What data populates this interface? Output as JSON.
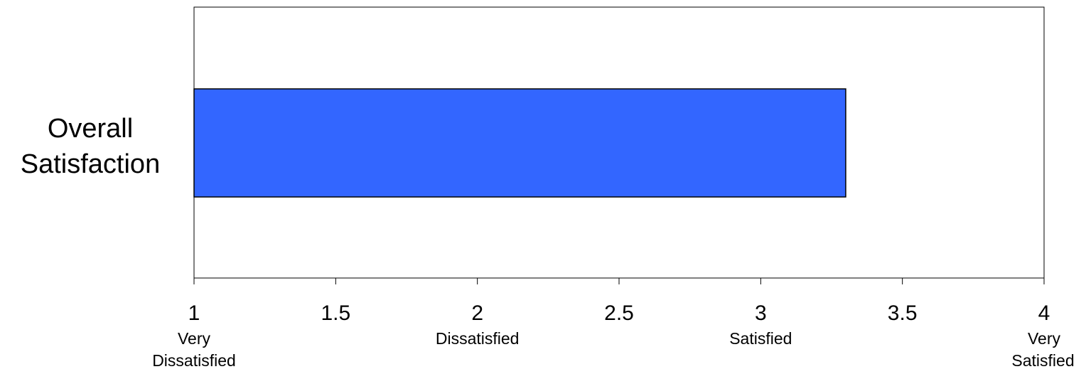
{
  "chart_data": {
    "type": "bar",
    "orientation": "horizontal",
    "categories": [
      "Overall Satisfaction"
    ],
    "category_label_lines": [
      "Overall",
      "Satisfaction"
    ],
    "values": [
      3.3
    ],
    "xlim": [
      1,
      4
    ],
    "ticks": [
      1,
      1.5,
      2,
      2.5,
      3,
      3.5,
      4
    ],
    "tick_labels": [
      "1",
      "1.5",
      "2",
      "2.5",
      "3",
      "3.5",
      "4"
    ],
    "scale_labels": [
      {
        "value": 1,
        "lines": [
          "Very",
          "Dissatisfied"
        ]
      },
      {
        "value": 2,
        "lines": [
          "Dissatisfied"
        ]
      },
      {
        "value": 3,
        "lines": [
          "Satisfied"
        ]
      },
      {
        "value": 4,
        "lines": [
          "Very",
          "Satisfied"
        ]
      }
    ],
    "title": "",
    "xlabel": "",
    "ylabel": "",
    "grid": false,
    "legend": "none",
    "colors": {
      "bar_fill": "#3366ff",
      "bar_stroke": "#000000",
      "frame": "#000000",
      "background": "#ffffff"
    }
  }
}
